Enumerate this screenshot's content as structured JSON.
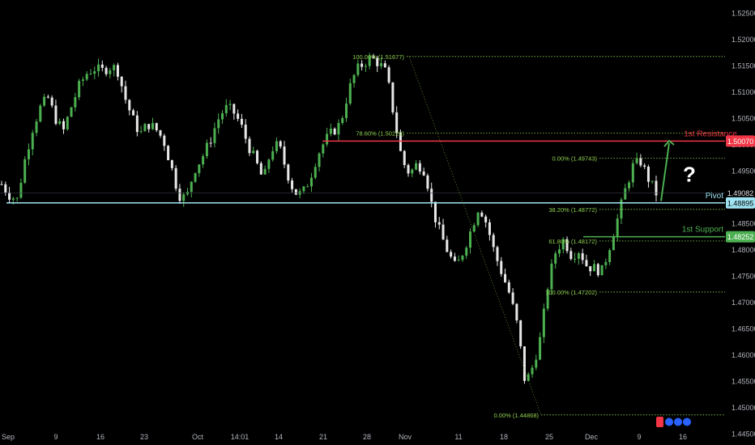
{
  "chart_data": {
    "type": "candlestick",
    "symbol_pair_range": "Sep – Dec",
    "y_axis": {
      "ticks": [
        1.525,
        1.52,
        1.515,
        1.51,
        1.505,
        1.5,
        1.495,
        1.49,
        1.485,
        1.48,
        1.475,
        1.47,
        1.465,
        1.46,
        1.455,
        1.45,
        1.445
      ],
      "tick_labels": [
        "1.52500",
        "1.52000",
        "1.51500",
        "1.51000",
        "1.50500",
        "1.50000",
        "1.49500",
        "1.49000",
        "1.48500",
        "1.48000",
        "1.47500",
        "1.47000",
        "1.46500",
        "1.46000",
        "1.45500",
        "1.45000",
        "1.44500"
      ],
      "range": [
        1.4445,
        1.5275
      ]
    },
    "x_axis": {
      "tick_labels": [
        "Sep",
        "9",
        "16",
        "23",
        "Oct",
        "14:01",
        "14",
        "21",
        "28",
        "Nov",
        "11",
        "18",
        "25",
        "Dec",
        "9",
        "16"
      ]
    },
    "horizontal_levels": [
      {
        "name": "1st Resistance",
        "value": 1.5007,
        "tag": "1.50070",
        "color": "#f23645"
      },
      {
        "name": "Pivot",
        "value": 1.48895,
        "tag": "1.48895",
        "color": "#9fe4f2"
      },
      {
        "name": "1st Support",
        "value": 1.48252,
        "tag": "1.48252",
        "color": "#4caf50"
      }
    ],
    "current_price": {
      "value": 1.49082,
      "tag": "1.49082"
    },
    "fib_upper": [
      {
        "label": "100.00% (1.51677)",
        "value": 1.51677
      },
      {
        "label": "78.60% (1.50220)",
        "value": 1.5022
      }
    ],
    "fib_lower": [
      {
        "label": "0.00% (1.49743)",
        "value": 1.49743
      },
      {
        "label": "38.20% (1.48772)",
        "value": 1.48772
      },
      {
        "label": "61.80% (1.48172)",
        "value": 1.48172
      },
      {
        "label": "100.00% (1.47202)",
        "value": 1.47202
      },
      {
        "label": "0.00% (1.44868)",
        "value": 1.44868
      }
    ],
    "question_mark": "?",
    "trend_points": [
      1.4925,
      1.4905,
      1.4895,
      1.497,
      1.503,
      1.507,
      1.509,
      1.505,
      1.5025,
      1.507,
      1.511,
      1.5135,
      1.5145,
      1.514,
      1.5148,
      1.5145,
      1.509,
      1.505,
      1.502,
      1.504,
      1.503,
      1.501,
      1.496,
      1.4905,
      1.4898,
      1.4952,
      1.4975,
      1.5005,
      1.5045,
      1.507,
      1.5065,
      1.504,
      1.5,
      1.4968,
      1.4932,
      1.4992,
      1.5,
      1.495,
      1.491,
      1.4905,
      1.4935,
      1.498,
      1.5008,
      1.5025,
      1.504,
      1.51,
      1.514,
      1.5155,
      1.5165,
      1.5155,
      1.5135,
      1.505,
      1.497,
      1.4945,
      1.4965,
      1.495,
      1.4875,
      1.483,
      1.4795,
      1.4765,
      1.48,
      1.484,
      1.4885,
      1.485,
      1.4795,
      1.4755,
      1.4715,
      1.4655,
      1.4545,
      1.458,
      1.4635,
      1.474,
      1.48,
      1.482,
      1.479,
      1.48,
      1.477,
      1.4765,
      1.476,
      1.481,
      1.486,
      1.4915,
      1.496,
      1.4968,
      1.4935,
      1.4908
    ]
  },
  "labels": {
    "resistance": "1st Resistance",
    "pivot": "Pivot",
    "support": "1st Support"
  },
  "colors": {
    "up": "#4caf50",
    "down": "#e8e8e8",
    "resistance": "#f23645",
    "pivot": "#9fe4f2",
    "support": "#4caf50",
    "fib": "#8fd14f"
  }
}
